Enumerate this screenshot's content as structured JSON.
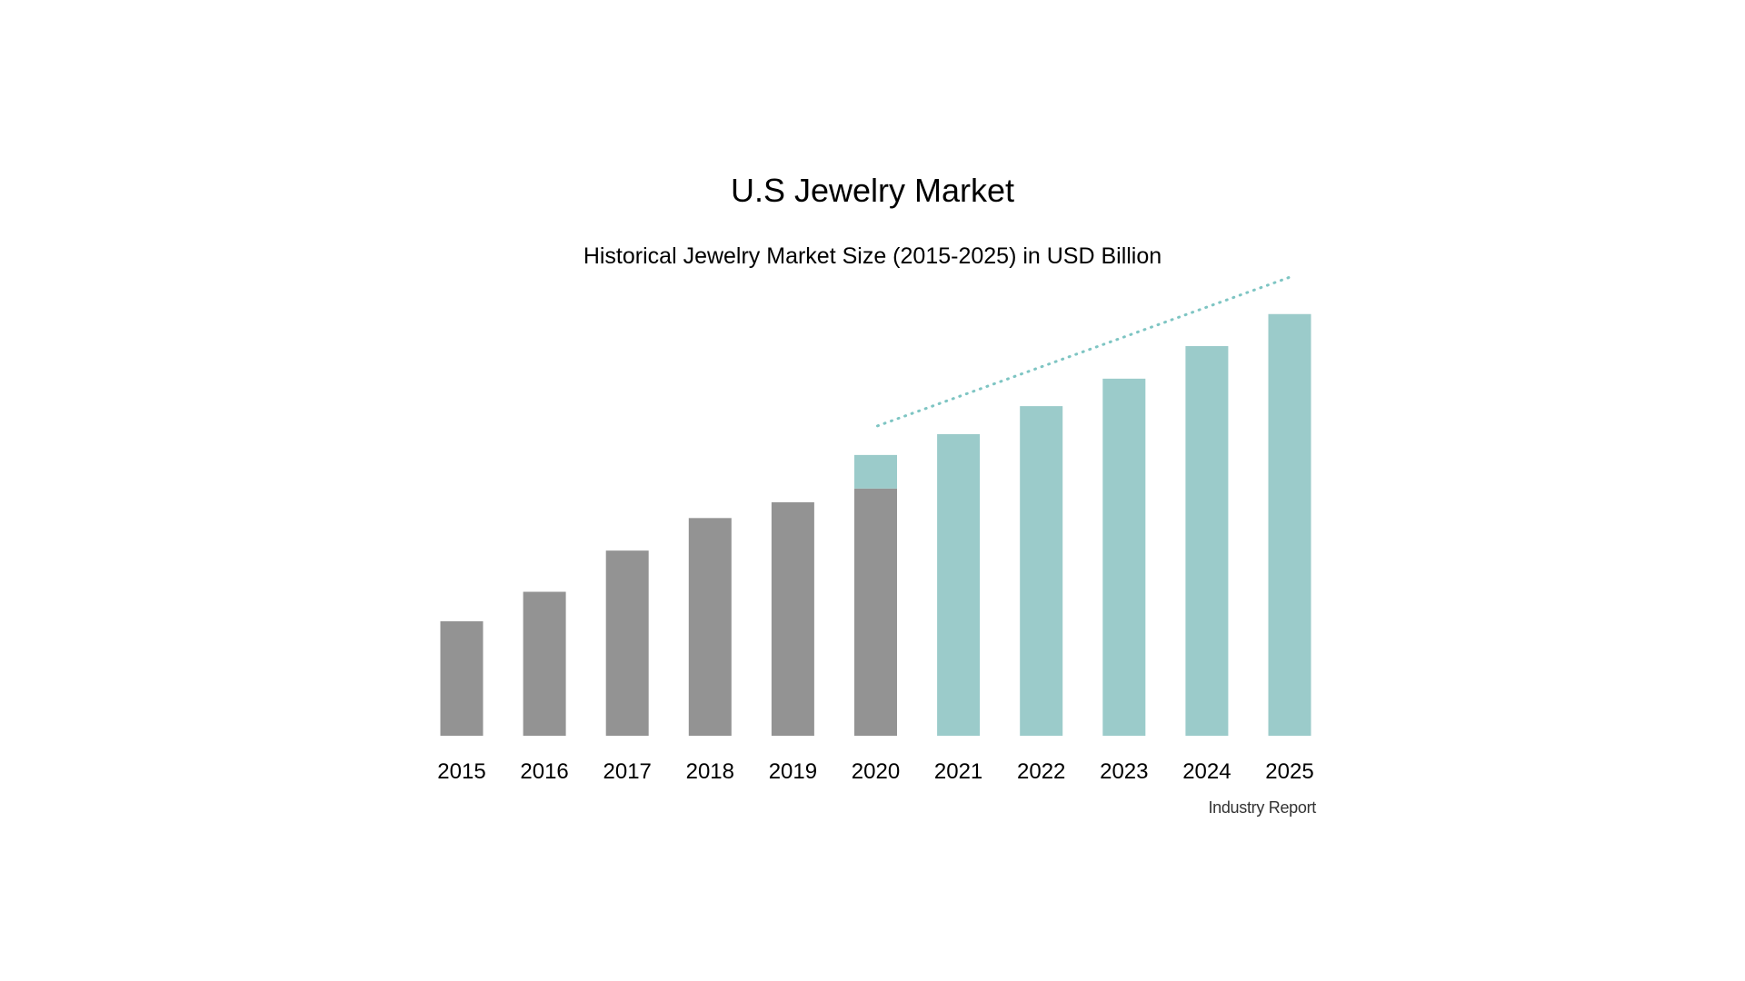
{
  "title": "U.S Jewelry Market",
  "subtitle": "Historical Jewelry Market Size (2015-2025) in USD Billion",
  "source": "Industry Report",
  "colors": {
    "historical": "#939393",
    "forecast": "#9bcbca",
    "trend_line": "#7ec5c3"
  },
  "chart_data": {
    "type": "bar",
    "title": "U.S Jewelry Market",
    "subtitle": "Historical Jewelry Market Size (2015-2025) in USD Billion",
    "xlabel": "",
    "ylabel": "",
    "categories": [
      "2015",
      "2016",
      "2017",
      "2018",
      "2019",
      "2020",
      "2021",
      "2022",
      "2023",
      "2024",
      "2025"
    ],
    "series": [
      {
        "values": [
          22.5,
          28.3,
          36.4,
          42.8,
          45.9,
          48.6,
          0,
          0,
          0,
          0,
          0
        ]
      },
      {
        "values": [
          0,
          0,
          0,
          0,
          0,
          6.6,
          59.3,
          64.8,
          70.2,
          76.6,
          82.9
        ]
      }
    ],
    "stacked": true,
    "ylim": [
      0,
      100
    ],
    "grid": false,
    "legend": "none",
    "trend_line": {
      "from": "2020",
      "to": "2025",
      "style": "dotted"
    }
  }
}
